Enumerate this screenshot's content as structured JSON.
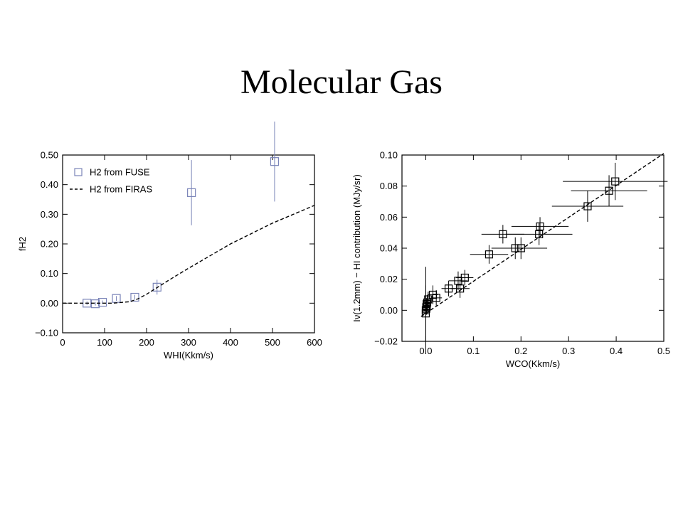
{
  "slide": {
    "title": "Molecular Gas"
  },
  "chart_data": [
    {
      "type": "scatter",
      "xlabel": "WHI(Kkm/s)",
      "ylabel": "fH2",
      "xlim": [
        0,
        600
      ],
      "ylim": [
        -0.1,
        0.5
      ],
      "xticks": [
        "0",
        "100",
        "200",
        "300",
        "400",
        "500",
        "600"
      ],
      "yticks": [
        "−0.10",
        "0.00",
        "0.10",
        "0.20",
        "0.30",
        "0.40",
        "0.50"
      ],
      "legend": {
        "placement": "top-left",
        "entries": [
          {
            "label": "H2 from FUSE",
            "marker": "square",
            "color": "#7a84b8"
          },
          {
            "label": "H2 from FIRAS",
            "marker": "dashed-line",
            "color": "#000000"
          }
        ]
      },
      "series": [
        {
          "name": "H2 from FUSE",
          "color": "#7a84b8",
          "points": [
            {
              "x": 58,
              "y": 0.0,
              "yerr": 0.006
            },
            {
              "x": 78,
              "y": -0.002,
              "yerr": 0.006
            },
            {
              "x": 95,
              "y": 0.003,
              "yerr": 0.006
            },
            {
              "x": 128,
              "y": 0.016,
              "yerr": 0.008
            },
            {
              "x": 172,
              "y": 0.02,
              "yerr": 0.008
            },
            {
              "x": 225,
              "y": 0.054,
              "yerr": 0.025
            },
            {
              "x": 307,
              "y": 0.373,
              "yerr": 0.11
            },
            {
              "x": 505,
              "y": 0.478,
              "yerr": 0.135
            }
          ]
        },
        {
          "name": "H2 from FIRAS",
          "color": "#000000",
          "line": [
            {
              "x": 0,
              "y": 0.0
            },
            {
              "x": 120,
              "y": 0.0
            },
            {
              "x": 160,
              "y": 0.005
            },
            {
              "x": 180,
              "y": 0.015
            },
            {
              "x": 200,
              "y": 0.03
            },
            {
              "x": 250,
              "y": 0.075
            },
            {
              "x": 300,
              "y": 0.118
            },
            {
              "x": 400,
              "y": 0.2
            },
            {
              "x": 500,
              "y": 0.27
            },
            {
              "x": 600,
              "y": 0.33
            }
          ]
        }
      ]
    },
    {
      "type": "scatter",
      "xlabel": "WCO(Kkm/s)",
      "ylabel": "Iν(1.2mm) − HI contribution (MJy/sr)",
      "xlim": [
        -0.05,
        0.5
      ],
      "ylim": [
        -0.02,
        0.1
      ],
      "xticks": [
        "0.0",
        "0.1",
        "0.2",
        "0.3",
        "0.4",
        "0.5"
      ],
      "yticks": [
        "−0.02",
        "0.00",
        "0.02",
        "0.04",
        "0.06",
        "0.08",
        "0.10"
      ],
      "series": [
        {
          "color": "#000000",
          "points": [
            {
              "x": 0.0,
              "y": -0.002,
              "xerr": 0.004,
              "yerr": 0.018
            },
            {
              "x": 0.0,
              "y": 0.0,
              "xerr": 0.004,
              "yerr": 0.028
            },
            {
              "x": 0.001,
              "y": 0.001,
              "xerr": 0.004,
              "yerr": 0.004
            },
            {
              "x": 0.001,
              "y": 0.002,
              "xerr": 0.004,
              "yerr": 0.004
            },
            {
              "x": 0.002,
              "y": 0.003,
              "xerr": 0.005,
              "yerr": 0.004
            },
            {
              "x": 0.002,
              "y": 0.004,
              "xerr": 0.005,
              "yerr": 0.004
            },
            {
              "x": 0.003,
              "y": 0.005,
              "xerr": 0.005,
              "yerr": 0.005
            },
            {
              "x": 0.005,
              "y": 0.007,
              "xerr": 0.006,
              "yerr": 0.005
            },
            {
              "x": 0.015,
              "y": 0.01,
              "xerr": 0.01,
              "yerr": 0.006
            },
            {
              "x": 0.022,
              "y": 0.008,
              "xerr": 0.012,
              "yerr": 0.005
            },
            {
              "x": 0.048,
              "y": 0.014,
              "xerr": 0.015,
              "yerr": 0.005
            },
            {
              "x": 0.068,
              "y": 0.019,
              "xerr": 0.02,
              "yerr": 0.006
            },
            {
              "x": 0.072,
              "y": 0.014,
              "xerr": 0.02,
              "yerr": 0.006
            },
            {
              "x": 0.082,
              "y": 0.021,
              "xerr": 0.018,
              "yerr": 0.005
            },
            {
              "x": 0.133,
              "y": 0.036,
              "xerr": 0.04,
              "yerr": 0.006
            },
            {
              "x": 0.162,
              "y": 0.049,
              "xerr": 0.045,
              "yerr": 0.006
            },
            {
              "x": 0.188,
              "y": 0.04,
              "xerr": 0.05,
              "yerr": 0.007
            },
            {
              "x": 0.2,
              "y": 0.04,
              "xerr": 0.055,
              "yerr": 0.007
            },
            {
              "x": 0.238,
              "y": 0.049,
              "xerr": 0.07,
              "yerr": 0.007
            },
            {
              "x": 0.24,
              "y": 0.054,
              "xerr": 0.06,
              "yerr": 0.006
            },
            {
              "x": 0.34,
              "y": 0.067,
              "xerr": 0.075,
              "yerr": 0.01
            },
            {
              "x": 0.385,
              "y": 0.077,
              "xerr": 0.08,
              "yerr": 0.01
            },
            {
              "x": 0.398,
              "y": 0.083,
              "xerr": 0.11,
              "yerr": 0.012
            }
          ]
        },
        {
          "color": "#000000",
          "line": [
            {
              "x": -0.01,
              "y": -0.004
            },
            {
              "x": 0.5,
              "y": 0.101
            }
          ]
        }
      ]
    }
  ]
}
